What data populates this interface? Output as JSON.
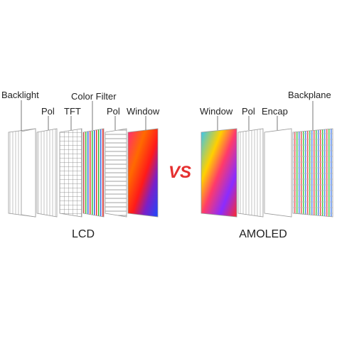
{
  "lcd": {
    "label": "LCD",
    "layers": [
      "Backlight",
      "Pol",
      "TFT",
      "Color Filter",
      "Pol",
      "Window"
    ]
  },
  "vs": "VS",
  "amoled": {
    "label": "AMOLED",
    "layers": [
      "Window",
      "Pol",
      "Encap",
      "Backplane"
    ]
  }
}
